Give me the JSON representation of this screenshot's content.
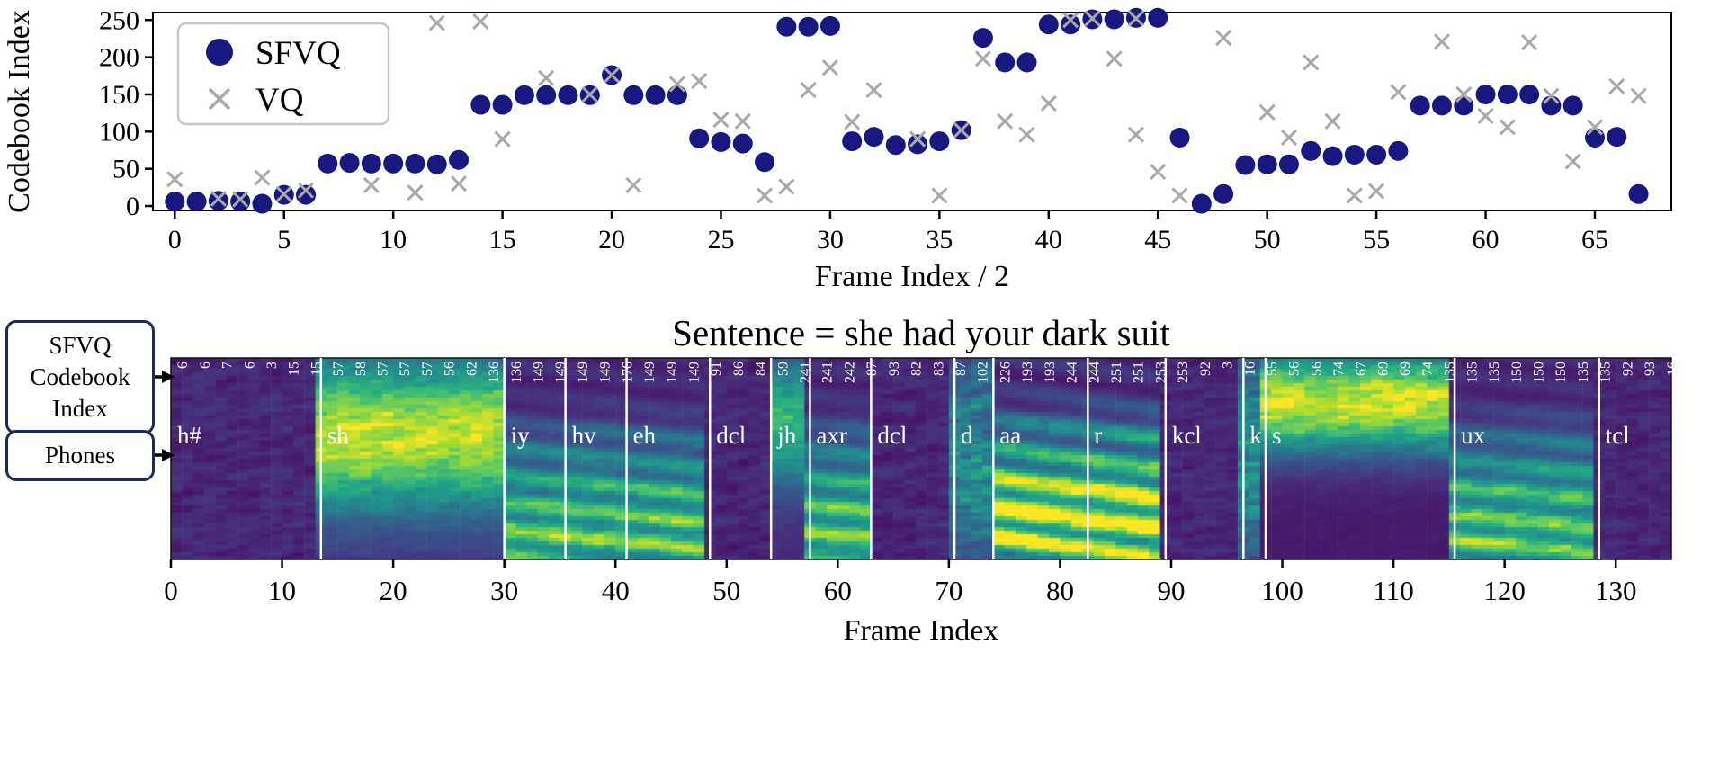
{
  "chart_data": [
    {
      "type": "scatter",
      "xlabel": "Frame Index / 2",
      "ylabel": "Codebook Index",
      "xlim": [
        -1,
        68.5
      ],
      "ylim": [
        -6,
        260
      ],
      "xticks": [
        0,
        5,
        10,
        15,
        20,
        25,
        30,
        35,
        40,
        45,
        50,
        55,
        60,
        65
      ],
      "yticks": [
        0,
        50,
        100,
        150,
        200,
        250
      ],
      "grid": false,
      "legend_position": "upper-left",
      "legend": [
        {
          "label": "SFVQ",
          "marker": "circle-icon",
          "color": "#181880"
        },
        {
          "label": "VQ",
          "marker": "x-icon",
          "color": "#a9a9a9"
        }
      ],
      "series": [
        {
          "name": "SFVQ",
          "marker": "circle",
          "color": "#181880",
          "x": [
            0,
            1,
            2,
            3,
            4,
            5,
            6,
            7,
            8,
            9,
            10,
            11,
            12,
            13,
            14,
            15,
            16,
            17,
            18,
            19,
            20,
            21,
            22,
            23,
            24,
            25,
            26,
            27,
            28,
            29,
            30,
            31,
            32,
            33,
            34,
            35,
            36,
            37,
            38,
            39,
            40,
            41,
            42,
            43,
            44,
            45,
            46,
            47,
            48,
            49,
            50,
            51,
            52,
            53,
            54,
            55,
            56,
            57,
            58,
            59,
            60,
            61,
            62,
            63,
            64,
            65,
            66,
            67
          ],
          "y": [
            6,
            6,
            7,
            6,
            3,
            15,
            15,
            57,
            58,
            57,
            57,
            57,
            56,
            62,
            136,
            136,
            149,
            149,
            149,
            149,
            176,
            149,
            149,
            149,
            91,
            86,
            84,
            59,
            241,
            241,
            242,
            87,
            93,
            82,
            83,
            87,
            102,
            226,
            193,
            193,
            244,
            244,
            251,
            251,
            253,
            253,
            92,
            3,
            16,
            55,
            56,
            56,
            74,
            67,
            69,
            69,
            74,
            135,
            135,
            135,
            150,
            150,
            150,
            135,
            135,
            92,
            93,
            16
          ]
        },
        {
          "name": "VQ",
          "marker": "x",
          "color": "#a9a9a9",
          "points": [
            [
              0,
              36
            ],
            [
              2,
              10
            ],
            [
              3,
              9
            ],
            [
              4,
              38
            ],
            [
              5,
              16
            ],
            [
              6,
              21
            ],
            [
              9,
              28
            ],
            [
              11,
              18
            ],
            [
              12,
              246
            ],
            [
              13,
              30
            ],
            [
              14,
              248
            ],
            [
              15,
              90
            ],
            [
              17,
              172
            ],
            [
              19,
              150
            ],
            [
              20,
              176
            ],
            [
              21,
              28
            ],
            [
              23,
              164
            ],
            [
              24,
              168
            ],
            [
              25,
              116
            ],
            [
              26,
              114
            ],
            [
              27,
              14
            ],
            [
              28,
              26
            ],
            [
              29,
              156
            ],
            [
              30,
              186
            ],
            [
              31,
              113
            ],
            [
              32,
              156
            ],
            [
              34,
              90
            ],
            [
              35,
              14
            ],
            [
              36,
              102
            ],
            [
              37,
              198
            ],
            [
              38,
              114
            ],
            [
              39,
              96
            ],
            [
              40,
              138
            ],
            [
              41,
              250
            ],
            [
              42,
              252
            ],
            [
              43,
              198
            ],
            [
              44,
              252
            ],
            [
              44,
              96
            ],
            [
              45,
              46
            ],
            [
              46,
              14
            ],
            [
              48,
              226
            ],
            [
              50,
              126
            ],
            [
              51,
              92
            ],
            [
              52,
              193
            ],
            [
              53,
              114
            ],
            [
              54,
              14
            ],
            [
              55,
              20
            ],
            [
              56,
              153
            ],
            [
              58,
              221
            ],
            [
              59,
              150
            ],
            [
              60,
              121
            ],
            [
              61,
              106
            ],
            [
              62,
              220
            ],
            [
              63,
              148
            ],
            [
              64,
              60
            ],
            [
              65,
              106
            ],
            [
              66,
              161
            ],
            [
              67,
              148
            ]
          ]
        }
      ]
    },
    {
      "type": "heatmap",
      "title": "Sentence = she had your dark suit",
      "xlabel": "Frame Index",
      "xticks": [
        0,
        10,
        20,
        30,
        40,
        50,
        60,
        70,
        80,
        90,
        100,
        110,
        120,
        130
      ],
      "frames": 135,
      "colormap": "viridis",
      "codebook_indices": [
        6,
        6,
        7,
        6,
        3,
        15,
        15,
        57,
        58,
        57,
        57,
        57,
        56,
        62,
        136,
        136,
        149,
        149,
        149,
        149,
        176,
        149,
        149,
        149,
        91,
        86,
        84,
        59,
        241,
        241,
        242,
        87,
        93,
        82,
        83,
        87,
        102,
        226,
        193,
        193,
        244,
        244,
        251,
        251,
        253,
        253,
        92,
        3,
        16,
        55,
        56,
        56,
        74,
        67,
        69,
        69,
        74,
        135,
        135,
        135,
        150,
        150,
        150,
        135,
        135,
        92,
        93,
        16
      ],
      "phones": [
        {
          "label": "h#",
          "start": 0,
          "end": 13.5,
          "type": "sil"
        },
        {
          "label": "sh",
          "start": 13.5,
          "end": 30,
          "type": "sh"
        },
        {
          "label": "iy",
          "start": 30,
          "end": 35.5,
          "type": "vowel"
        },
        {
          "label": "hv",
          "start": 35.5,
          "end": 41,
          "type": "vowel"
        },
        {
          "label": "eh",
          "start": 41,
          "end": 48.5,
          "type": "vowel"
        },
        {
          "label": "dcl",
          "start": 48.5,
          "end": 54,
          "type": "sil"
        },
        {
          "label": "jh",
          "start": 54,
          "end": 57.5,
          "type": "jh"
        },
        {
          "label": "axr",
          "start": 57.5,
          "end": 63,
          "type": "vowel"
        },
        {
          "label": "dcl",
          "start": 63,
          "end": 70.5,
          "type": "sil"
        },
        {
          "label": "d",
          "start": 70.5,
          "end": 74,
          "type": "burst"
        },
        {
          "label": "aa",
          "start": 74,
          "end": 82.5,
          "type": "vowel2"
        },
        {
          "label": "r",
          "start": 82.5,
          "end": 89.5,
          "type": "vowel2"
        },
        {
          "label": "kcl",
          "start": 89.5,
          "end": 96.5,
          "type": "sil"
        },
        {
          "label": "k",
          "start": 96.5,
          "end": 98.5,
          "type": "burst"
        },
        {
          "label": "s",
          "start": 98.5,
          "end": 115.5,
          "type": "s"
        },
        {
          "label": "ux",
          "start": 115.5,
          "end": 128.5,
          "type": "vowel"
        },
        {
          "label": "tcl",
          "start": 128.5,
          "end": 135,
          "type": "sil"
        }
      ]
    }
  ],
  "annotations": {
    "sfvq_box_label": "SFVQ Codebook Index",
    "phones_box_label": "Phones",
    "box_border_color": "#1d2b50",
    "sfvq_marker_color": "#181880",
    "vq_marker_color": "#a9a9a9"
  }
}
